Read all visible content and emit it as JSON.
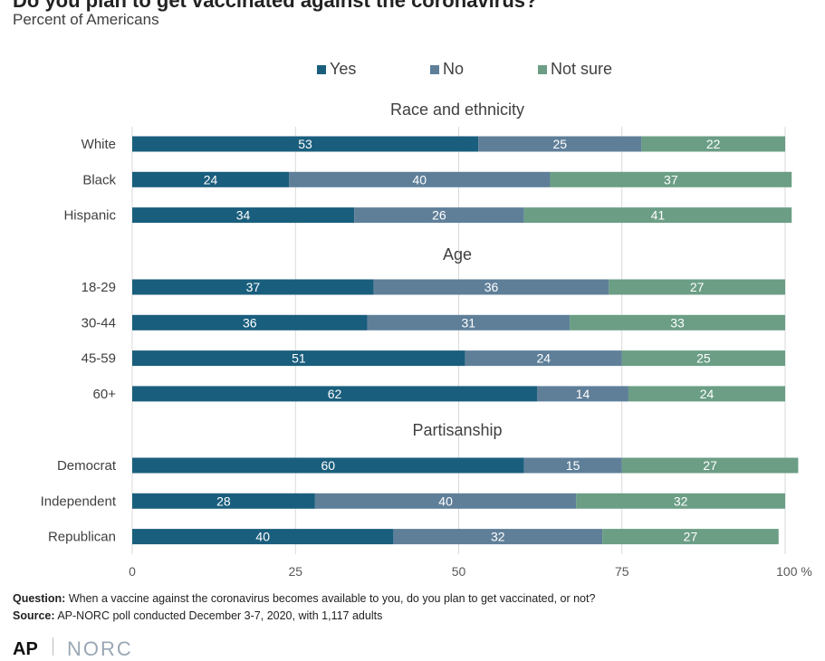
{
  "title": "Do you plan to get vaccinated against the coronavirus?",
  "subtitle": "Percent of Americans",
  "notes": {
    "question_label": "Question:",
    "question_text": "When a vaccine against the coronavirus becomes available to you, do you plan to get vaccinated, or not?",
    "source_label": "Source:",
    "source_text": "AP-NORC poll conducted December 3-7, 2020,  with 1,117 adults"
  },
  "logos": {
    "ap": "AP",
    "norc": "NORC"
  },
  "colors": {
    "Yes": "#1a5e7d",
    "No": "#5f7f99",
    "Not sure": "#6b9e85"
  },
  "chart_data": {
    "type": "bar",
    "orientation": "horizontal",
    "stacked": true,
    "legend_position": "top",
    "grid": true,
    "xlim": [
      0,
      100
    ],
    "xticks": [
      "0",
      "25",
      "50",
      "75",
      "100 %"
    ],
    "series_names": [
      "Yes",
      "No",
      "Not sure"
    ],
    "groups": [
      {
        "title": "Race and ethnicity",
        "rows": [
          {
            "label": "White",
            "values": [
              53,
              25,
              22
            ]
          },
          {
            "label": "Black",
            "values": [
              24,
              40,
              37
            ]
          },
          {
            "label": "Hispanic",
            "values": [
              34,
              26,
              41
            ]
          }
        ]
      },
      {
        "title": "Age",
        "rows": [
          {
            "label": "18-29",
            "values": [
              37,
              36,
              27
            ]
          },
          {
            "label": "30-44",
            "values": [
              36,
              31,
              33
            ]
          },
          {
            "label": "45-59",
            "values": [
              51,
              24,
              25
            ]
          },
          {
            "label": "60+",
            "values": [
              62,
              14,
              24
            ]
          }
        ]
      },
      {
        "title": "Partisanship",
        "rows": [
          {
            "label": "Democrat",
            "values": [
              60,
              15,
              27
            ]
          },
          {
            "label": "Independent",
            "values": [
              28,
              40,
              32
            ]
          },
          {
            "label": "Republican",
            "values": [
              40,
              32,
              27
            ]
          }
        ]
      }
    ]
  }
}
